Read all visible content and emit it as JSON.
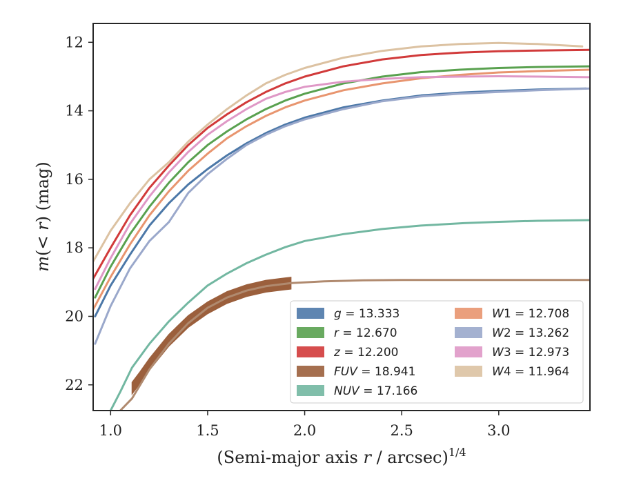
{
  "chart_data": {
    "type": "line",
    "xlabel": "(Semi-major axis r / arcsec)^1/4",
    "ylabel": "m(< r) (mag)",
    "xlim": [
      0.91,
      3.47
    ],
    "ylim": [
      22.75,
      11.45
    ],
    "y_inverted": true,
    "grid": false,
    "legend_placement": "lower-right",
    "x_ticks": [
      1.0,
      1.5,
      2.0,
      2.5,
      3.0
    ],
    "x_tick_labels": [
      "1.0",
      "1.5",
      "2.0",
      "2.5",
      "3.0"
    ],
    "y_ticks": [
      12,
      14,
      16,
      18,
      20,
      22
    ],
    "y_tick_labels": [
      "12",
      "14",
      "16",
      "18",
      "20",
      "22"
    ],
    "series": [
      {
        "name": "g = 13.333",
        "color": "#4c78a8",
        "x": [
          0.92,
          1.0,
          1.1,
          1.2,
          1.3,
          1.4,
          1.5,
          1.6,
          1.7,
          1.8,
          1.9,
          2.0,
          2.2,
          2.4,
          2.6,
          2.8,
          3.0,
          3.2,
          3.45
        ],
        "y": [
          20.0,
          19.1,
          18.2,
          17.35,
          16.7,
          16.15,
          15.7,
          15.3,
          14.95,
          14.65,
          14.4,
          14.2,
          13.9,
          13.7,
          13.55,
          13.47,
          13.42,
          13.38,
          13.35
        ]
      },
      {
        "name": "r = 12.670",
        "color": "#59a14f",
        "x": [
          0.92,
          1.0,
          1.1,
          1.2,
          1.3,
          1.4,
          1.5,
          1.6,
          1.7,
          1.8,
          1.9,
          2.0,
          2.2,
          2.4,
          2.6,
          2.8,
          3.0,
          3.2,
          3.47
        ],
        "y": [
          19.45,
          18.55,
          17.6,
          16.8,
          16.1,
          15.5,
          15.0,
          14.6,
          14.25,
          13.95,
          13.7,
          13.5,
          13.2,
          13.0,
          12.87,
          12.8,
          12.75,
          12.72,
          12.7
        ]
      },
      {
        "name": "z = 12.200",
        "color": "#d13a3a",
        "x": [
          0.91,
          1.0,
          1.1,
          1.2,
          1.3,
          1.4,
          1.5,
          1.6,
          1.7,
          1.8,
          1.9,
          2.0,
          2.2,
          2.4,
          2.6,
          2.8,
          3.0,
          3.2,
          3.47
        ],
        "y": [
          18.9,
          18.0,
          17.05,
          16.25,
          15.6,
          15.0,
          14.5,
          14.1,
          13.75,
          13.45,
          13.2,
          13.0,
          12.7,
          12.5,
          12.37,
          12.3,
          12.26,
          12.24,
          12.22
        ]
      },
      {
        "name": "FUV = 18.941",
        "color": "#9b5f3c",
        "band_width": 0.35,
        "x": [
          1.11,
          1.15,
          1.2,
          1.25,
          1.3,
          1.4,
          1.5,
          1.6,
          1.7,
          1.8,
          1.9,
          1.93
        ],
        "y": [
          22.1,
          21.8,
          21.4,
          21.05,
          20.7,
          20.15,
          19.75,
          19.45,
          19.25,
          19.12,
          19.05,
          19.03
        ]
      },
      {
        "name": "FUV = 18.941",
        "color": "#b08a6f",
        "x": [
          1.05,
          1.11,
          1.2,
          1.3,
          1.4,
          1.5,
          1.6,
          1.7,
          1.8,
          1.93,
          2.1,
          2.3,
          2.5,
          2.7,
          2.9,
          3.1,
          3.3,
          3.47
        ],
        "y": [
          22.75,
          22.4,
          21.55,
          20.8,
          20.2,
          19.75,
          19.45,
          19.25,
          19.12,
          19.03,
          18.98,
          18.95,
          18.94,
          18.94,
          18.94,
          18.94,
          18.94,
          18.94
        ]
      },
      {
        "name": "NUV = 17.166",
        "color": "#72b7a1",
        "x": [
          1.0,
          1.05,
          1.11,
          1.2,
          1.3,
          1.4,
          1.5,
          1.6,
          1.7,
          1.8,
          1.9,
          2.0,
          2.2,
          2.4,
          2.6,
          2.82,
          3.0,
          3.2,
          3.47
        ],
        "y": [
          22.75,
          22.2,
          21.5,
          20.8,
          20.15,
          19.6,
          19.1,
          18.75,
          18.45,
          18.2,
          17.98,
          17.8,
          17.6,
          17.45,
          17.35,
          17.28,
          17.24,
          17.21,
          17.19
        ]
      },
      {
        "name": "W1 = 12.708",
        "color": "#e8956f",
        "x": [
          0.91,
          1.0,
          1.1,
          1.2,
          1.3,
          1.4,
          1.5,
          1.6,
          1.7,
          1.8,
          1.9,
          2.0,
          2.2,
          2.4,
          2.6,
          2.8,
          3.0,
          3.2,
          3.47
        ],
        "y": [
          19.8,
          18.85,
          17.9,
          17.05,
          16.35,
          15.75,
          15.25,
          14.8,
          14.45,
          14.15,
          13.9,
          13.7,
          13.4,
          13.2,
          13.05,
          12.95,
          12.88,
          12.84,
          12.8
        ]
      },
      {
        "name": "W2 = 13.262",
        "color": "#9aa8cb",
        "x": [
          0.92,
          1.0,
          1.1,
          1.2,
          1.3,
          1.4,
          1.5,
          1.6,
          1.7,
          1.8,
          1.9,
          2.0,
          2.2,
          2.4,
          2.6,
          2.8,
          3.0,
          3.2,
          3.47
        ],
        "y": [
          20.8,
          19.7,
          18.6,
          17.8,
          17.25,
          16.4,
          15.85,
          15.4,
          15.0,
          14.7,
          14.45,
          14.25,
          13.95,
          13.72,
          13.58,
          13.5,
          13.45,
          13.4,
          13.35
        ]
      },
      {
        "name": "W3 = 12.973",
        "color": "#df98c6",
        "x": [
          0.92,
          1.0,
          1.1,
          1.2,
          1.3,
          1.4,
          1.5,
          1.6,
          1.7,
          1.8,
          1.9,
          2.0,
          2.2,
          2.4,
          2.6,
          2.8,
          3.0,
          3.2,
          3.47
        ],
        "y": [
          19.2,
          18.3,
          17.3,
          16.5,
          15.8,
          15.2,
          14.7,
          14.3,
          13.95,
          13.65,
          13.45,
          13.3,
          13.15,
          13.07,
          13.02,
          13.0,
          12.99,
          13.0,
          13.02
        ]
      },
      {
        "name": "W4 = 11.964",
        "color": "#dcc2a2",
        "x": [
          0.91,
          1.0,
          1.1,
          1.2,
          1.3,
          1.4,
          1.5,
          1.6,
          1.7,
          1.8,
          1.9,
          2.0,
          2.2,
          2.4,
          2.6,
          2.8,
          3.0,
          3.2,
          3.43
        ],
        "y": [
          18.4,
          17.5,
          16.7,
          16.0,
          15.5,
          14.9,
          14.4,
          13.95,
          13.55,
          13.2,
          12.95,
          12.75,
          12.45,
          12.25,
          12.12,
          12.05,
          12.02,
          12.05,
          12.12
        ]
      }
    ],
    "legend": [
      {
        "label_html": "<tspan font-style='italic'>g</tspan> = 13.333",
        "color": "#4c78a8"
      },
      {
        "label_html": "<tspan font-style='italic'>r</tspan> = 12.670",
        "color": "#59a14f"
      },
      {
        "label_html": "<tspan font-style='italic'>z</tspan> = 12.200",
        "color": "#d13a3a"
      },
      {
        "label_html": "<tspan font-style='italic'>FUV</tspan> = 18.941",
        "color": "#9b5f3c"
      },
      {
        "label_html": "<tspan font-style='italic'>NUV</tspan> = 17.166",
        "color": "#72b7a1"
      },
      {
        "label_html": "<tspan font-style='italic'>W</tspan>1 = 12.708",
        "color": "#e8956f"
      },
      {
        "label_html": "<tspan font-style='italic'>W</tspan>2 = 13.262",
        "color": "#9aa8cb"
      },
      {
        "label_html": "<tspan font-style='italic'>W</tspan>3 = 12.973",
        "color": "#df98c6"
      },
      {
        "label_html": "<tspan font-style='italic'>W</tspan>4 = 11.964",
        "color": "#dcc2a2"
      }
    ]
  }
}
